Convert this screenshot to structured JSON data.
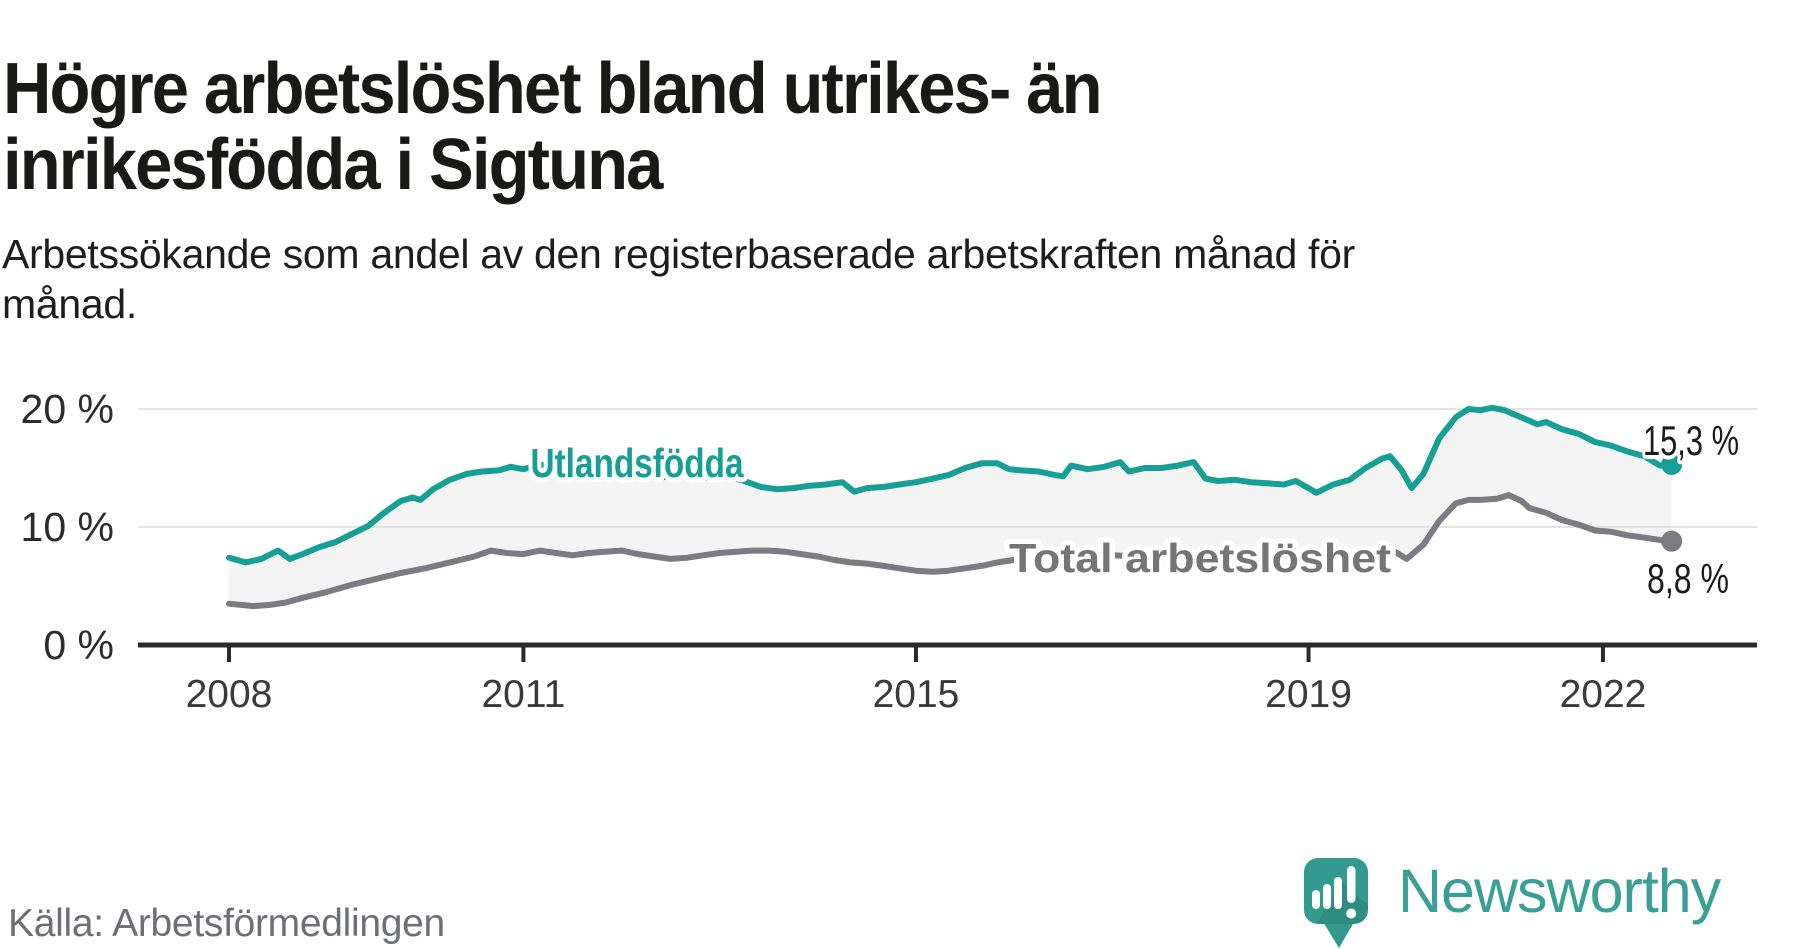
{
  "title_lines": [
    "Högre arbetslöshet bland utrikes- än",
    "inrikesfödda i Sigtuna"
  ],
  "subtitle_lines": [
    "Arbetssökande som andel av den registerbaserade arbetskraften månad för",
    "månad."
  ],
  "source": "Källa: Arbetsförmedlingen",
  "logo": {
    "text": "Newsworthy",
    "icon": "speech-bubble-bar-chart-icon"
  },
  "colors": {
    "accent_teal": "#16a095",
    "line_gray": "#7b7b81",
    "label_gray": "#757578",
    "band_fill": "#f4f4f4",
    "grid": "#e2e2e2",
    "axis": "#2b2b2b",
    "title": "#191a17",
    "source_text": "#6e6e77",
    "logo_teal": "#3aa096"
  },
  "chart_data": {
    "type": "line",
    "title": "Högre arbetslöshet bland utrikes- än inrikesfödda i Sigtuna",
    "subtitle": "Arbetssökande som andel av den registerbaserade arbetskraften månad för månad.",
    "unit": "%",
    "grid": "horizontal",
    "band_between_series": true,
    "x_axis": {
      "ticks": [
        2008,
        2011,
        2015,
        2019,
        2022
      ],
      "range": [
        2008,
        2022.75
      ]
    },
    "y_axis": {
      "ticks": [
        {
          "value": 0,
          "label": "0 %"
        },
        {
          "value": 10,
          "label": "10 %"
        },
        {
          "value": 20,
          "label": "20 %"
        }
      ],
      "range": [
        0,
        22
      ]
    },
    "series": [
      {
        "name": "Utlandsfödda",
        "label_text": "Utlandsfödda",
        "color": "#16a095",
        "end_label": "15,3 %",
        "end_value": 15.3,
        "x": [
          2008.0,
          2008.17,
          2008.33,
          2008.5,
          2008.62,
          2008.75,
          2008.92,
          2009.08,
          2009.25,
          2009.42,
          2009.58,
          2009.75,
          2009.87,
          2009.95,
          2010.08,
          2010.25,
          2010.42,
          2010.58,
          2010.75,
          2010.87,
          2011.0,
          2011.17,
          2011.33,
          2011.42,
          2011.58,
          2011.75,
          2011.92,
          2012.08,
          2012.25,
          2012.42,
          2012.58,
          2012.75,
          2012.92,
          2013.08,
          2013.25,
          2013.42,
          2013.58,
          2013.75,
          2013.92,
          2014.08,
          2014.25,
          2014.37,
          2014.5,
          2014.67,
          2014.83,
          2015.0,
          2015.17,
          2015.33,
          2015.5,
          2015.67,
          2015.83,
          2015.95,
          2016.08,
          2016.25,
          2016.42,
          2016.5,
          2016.58,
          2016.75,
          2016.92,
          2017.08,
          2017.17,
          2017.33,
          2017.5,
          2017.67,
          2017.83,
          2017.95,
          2018.08,
          2018.25,
          2018.42,
          2018.58,
          2018.75,
          2018.87,
          2019.0,
          2019.08,
          2019.25,
          2019.42,
          2019.58,
          2019.75,
          2019.83,
          2019.95,
          2020.05,
          2020.17,
          2020.33,
          2020.5,
          2020.63,
          2020.75,
          2020.87,
          2021.0,
          2021.08,
          2021.25,
          2021.33,
          2021.42,
          2021.58,
          2021.75,
          2021.92,
          2022.08,
          2022.25,
          2022.42,
          2022.58,
          2022.7
        ],
        "values": [
          7.4,
          7.0,
          7.3,
          8.0,
          7.3,
          7.7,
          8.3,
          8.7,
          9.4,
          10.1,
          11.2,
          12.2,
          12.5,
          12.3,
          13.2,
          14.0,
          14.5,
          14.7,
          14.8,
          15.1,
          14.9,
          15.3,
          15.0,
          14.8,
          15.3,
          14.7,
          15.2,
          15.4,
          14.9,
          14.2,
          14.6,
          14.4,
          14.1,
          14.3,
          13.9,
          13.4,
          13.2,
          13.3,
          13.5,
          13.6,
          13.8,
          13.0,
          13.3,
          13.4,
          13.6,
          13.8,
          14.1,
          14.4,
          15.0,
          15.4,
          15.4,
          14.9,
          14.8,
          14.7,
          14.4,
          14.3,
          15.2,
          14.9,
          15.1,
          15.5,
          14.7,
          15.0,
          15.0,
          15.2,
          15.5,
          14.1,
          13.9,
          14.0,
          13.8,
          13.7,
          13.6,
          13.9,
          13.3,
          12.9,
          13.6,
          14.0,
          15.0,
          15.8,
          16.0,
          14.8,
          13.3,
          14.5,
          17.5,
          19.3,
          20.0,
          19.9,
          20.1,
          19.9,
          19.6,
          19.0,
          18.7,
          18.9,
          18.3,
          17.9,
          17.2,
          16.9,
          16.4,
          16.0,
          15.2,
          15.3
        ]
      },
      {
        "name": "Total arbetslöshet",
        "label_text": "Total arbetslöshet",
        "color": "#7b7b81",
        "end_label": "8,8 %",
        "end_value": 8.8,
        "x": [
          2008.0,
          2008.25,
          2008.42,
          2008.58,
          2008.75,
          2009.0,
          2009.25,
          2009.5,
          2009.75,
          2010.0,
          2010.25,
          2010.5,
          2010.67,
          2010.83,
          2011.0,
          2011.17,
          2011.33,
          2011.5,
          2011.67,
          2011.83,
          2012.0,
          2012.17,
          2012.33,
          2012.5,
          2012.67,
          2012.83,
          2013.0,
          2013.17,
          2013.33,
          2013.5,
          2013.67,
          2013.83,
          2014.0,
          2014.17,
          2014.33,
          2014.5,
          2014.67,
          2014.83,
          2015.0,
          2015.17,
          2015.33,
          2015.5,
          2015.67,
          2015.83,
          2016.0,
          2016.25,
          2016.5,
          2016.75,
          2017.0,
          2017.25,
          2017.5,
          2017.75,
          2018.0,
          2018.25,
          2018.5,
          2018.75,
          2019.0,
          2019.25,
          2019.5,
          2019.75,
          2019.88,
          2020.0,
          2020.17,
          2020.33,
          2020.5,
          2020.63,
          2020.75,
          2020.92,
          2021.04,
          2021.17,
          2021.25,
          2021.42,
          2021.58,
          2021.75,
          2021.92,
          2022.08,
          2022.25,
          2022.42,
          2022.58,
          2022.7
        ],
        "values": [
          3.5,
          3.3,
          3.4,
          3.6,
          4.0,
          4.5,
          5.1,
          5.6,
          6.1,
          6.5,
          7.0,
          7.5,
          8.0,
          7.8,
          7.7,
          8.0,
          7.8,
          7.6,
          7.8,
          7.9,
          8.0,
          7.7,
          7.5,
          7.3,
          7.4,
          7.6,
          7.8,
          7.9,
          8.0,
          8.0,
          7.9,
          7.7,
          7.5,
          7.2,
          7.0,
          6.9,
          6.7,
          6.5,
          6.3,
          6.2,
          6.3,
          6.5,
          6.7,
          7.0,
          7.2,
          7.3,
          7.4,
          7.5,
          7.6,
          7.5,
          7.4,
          7.3,
          7.1,
          7.0,
          6.9,
          7.0,
          7.1,
          7.3,
          7.5,
          7.8,
          7.9,
          7.3,
          8.5,
          10.5,
          12.0,
          12.3,
          12.3,
          12.4,
          12.7,
          12.2,
          11.6,
          11.2,
          10.6,
          10.2,
          9.7,
          9.6,
          9.3,
          9.1,
          8.9,
          8.8
        ]
      }
    ]
  }
}
